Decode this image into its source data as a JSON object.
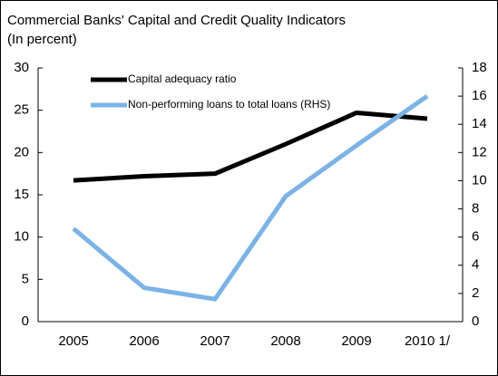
{
  "chart_data": {
    "type": "line",
    "title": "Commercial Banks' Capital and Credit Quality Indicators",
    "subtitle": "(In percent)",
    "categories": [
      "2005",
      "2006",
      "2007",
      "2008",
      "2009",
      "2010 1/"
    ],
    "series": [
      {
        "name": "Capital adequacy ratio",
        "color": "#000000",
        "values": [
          16.7,
          17.2,
          17.5,
          21.0,
          24.7,
          24.0
        ]
      },
      {
        "name": "Non-performing loans to total loans (RHS)",
        "color": "#7cb3e6",
        "axis": "y2",
        "values": [
          6.6,
          2.4,
          1.6,
          8.9,
          12.5,
          16.0
        ]
      }
    ],
    "ylim": [
      0,
      30
    ],
    "yticks": [
      0,
      5,
      10,
      15,
      20,
      25,
      30
    ],
    "y2lim": [
      0,
      18
    ],
    "y2ticks": [
      0,
      2,
      4,
      6,
      8,
      10,
      12,
      14,
      16,
      18
    ],
    "grid": false,
    "legend": "top-left"
  }
}
